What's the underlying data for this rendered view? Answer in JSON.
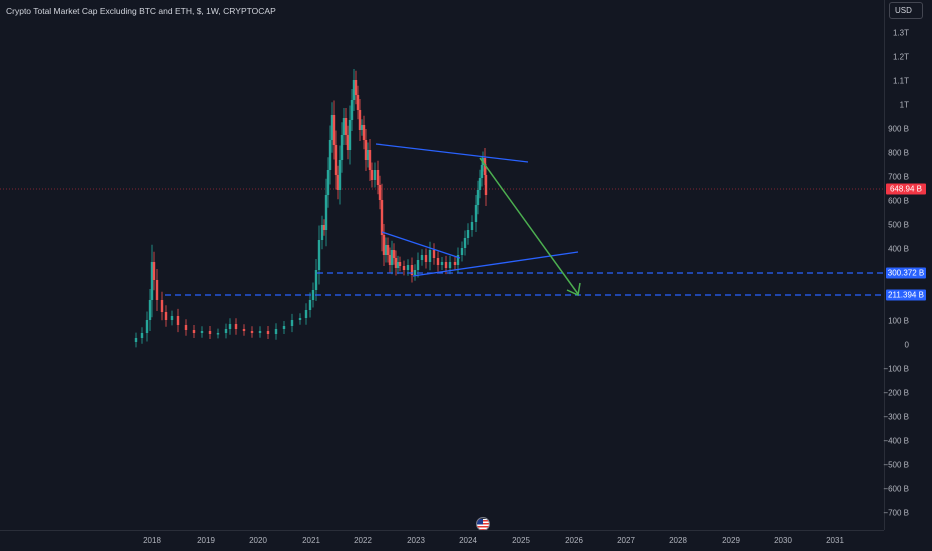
{
  "title": "Crypto Total Market Cap Excluding BTC and ETH, $, 1W, CRYPTOCAP",
  "currency": "USD",
  "y_ticks": [
    "1.3T",
    "1.2T",
    "1.1T",
    "1T",
    "900 B",
    "800 B",
    "700 B",
    "600 B",
    "500 B",
    "400 B",
    "200 B",
    "100 B",
    "0",
    "−100 B",
    "−200 B",
    "−300 B",
    "−400 B",
    "−500 B",
    "−600 B",
    "−700 B"
  ],
  "x_ticks": [
    "2018",
    "2019",
    "2020",
    "2021",
    "2022",
    "2023",
    "2024",
    "2025",
    "2026",
    "2027",
    "2028",
    "2029",
    "2030",
    "2031"
  ],
  "price_tags": [
    {
      "label": "648.94 B",
      "color": "#f23645"
    },
    {
      "label": "300.372 B",
      "color": "#2962ff"
    },
    {
      "label": "211.394 B",
      "color": "#2962ff"
    }
  ],
  "colors": {
    "background": "#131722",
    "up": "#26a69a",
    "down": "#ef5350",
    "trendline": "#2962ff",
    "arrow": "#4caf50"
  },
  "icons": {
    "flag": "us-flag-icon"
  }
}
